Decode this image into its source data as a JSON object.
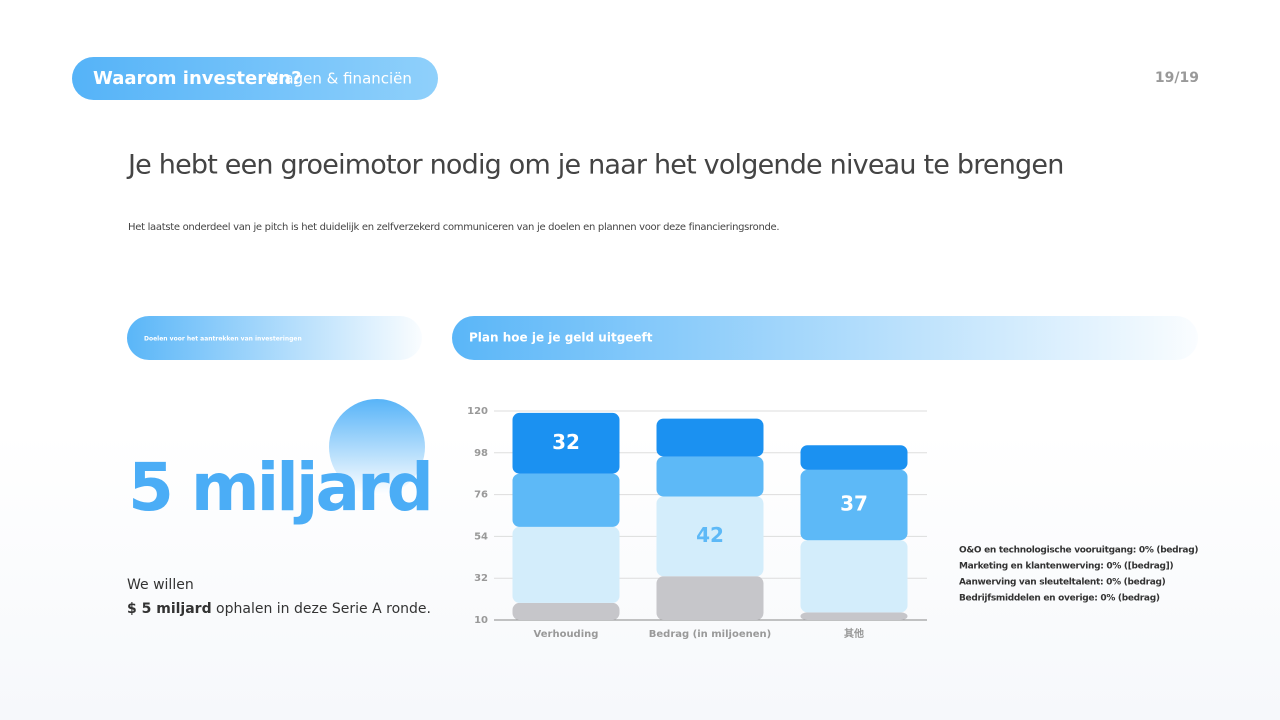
{
  "header": {
    "tag_title": "Waarom investeren?",
    "tag_subtitle": "Vragen & financiën",
    "page_number": "19/19"
  },
  "title": "Je hebt een groeimotor nodig om je naar het volgende niveau te brengen",
  "subtitle": "Het laatste onderdeel van je pitch is het duidelijk en zelfverzekerd communiceren van je doelen en plannen voor deze financieringsronde.",
  "left_panel": {
    "heading": "Doelen voor het aantrekken van investeringen",
    "big_number": "5 miljard",
    "intro": "We willen",
    "amount": "$ 5 miljard",
    "rest": "ophalen in deze Serie A ronde."
  },
  "chart_data": {
    "type": "stacked_bar",
    "title": "Plan hoe je je geld uitgeeft",
    "categories": [
      "Verhouding",
      "Bedrag (in miljoenen)",
      "其他"
    ],
    "series": [
      {
        "color": "#c6c6ca",
        "values": [
          19,
          33,
          14
        ],
        "data_labels": [
          false,
          false,
          false
        ]
      },
      {
        "color": "#d3edfb",
        "values": [
          40,
          42,
          38
        ],
        "data_labels": [
          false,
          true,
          false
        ]
      },
      {
        "color": "#5db9f7",
        "values": [
          28,
          21,
          37
        ],
        "data_labels": [
          false,
          false,
          true
        ]
      },
      {
        "color": "#1b91f1",
        "values": [
          32,
          20,
          13
        ],
        "data_labels": [
          true,
          false,
          false
        ]
      }
    ],
    "ylim": [
      10,
      120
    ],
    "yticks": [
      10,
      32,
      54,
      76,
      98,
      120
    ],
    "grid": true,
    "notes": [
      "O&O en technologische vooruitgang: 0% (bedrag)",
      "Marketing en klantenwerving: 0% ([bedrag])",
      "Aanwerving van sleuteltalent: 0% (bedrag)",
      "Bedrijfsmiddelen en overige: 0% (bedrag)"
    ]
  }
}
